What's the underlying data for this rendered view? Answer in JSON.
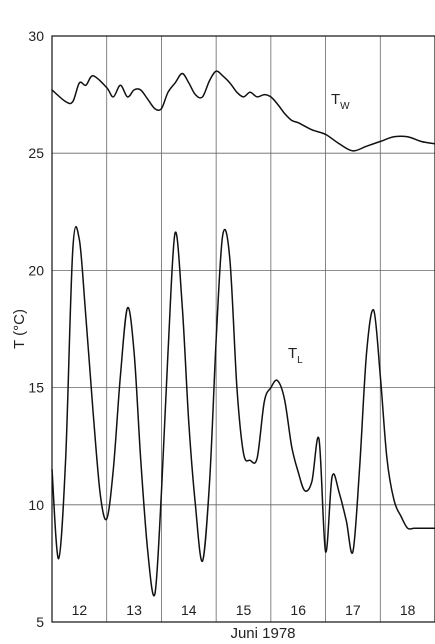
{
  "chart_data": {
    "type": "line",
    "ylabel": "T (°C)",
    "xlabel": "Juni 1978",
    "ylim": [
      5,
      30
    ],
    "yticks": [
      5,
      10,
      15,
      20,
      25,
      30
    ],
    "xlim": [
      11.5,
      18.5
    ],
    "xticks": [
      12,
      13,
      14,
      15,
      16,
      17,
      18
    ],
    "xtick_labels": [
      "12",
      "13",
      "14",
      "15",
      "16",
      "17",
      "18"
    ],
    "grid": true,
    "series": [
      {
        "name": "T",
        "name_sub": "W",
        "x": [
          11.5,
          11.75,
          11.88,
          12.0,
          12.12,
          12.25,
          12.5,
          12.62,
          12.75,
          12.88,
          13.0,
          13.12,
          13.25,
          13.38,
          13.5,
          13.62,
          13.75,
          13.88,
          14.0,
          14.12,
          14.25,
          14.38,
          14.5,
          14.62,
          14.75,
          14.88,
          15.0,
          15.12,
          15.25,
          15.38,
          15.5,
          15.62,
          15.75,
          15.88,
          16.0,
          16.25,
          16.5,
          16.75,
          17.0,
          17.25,
          17.5,
          17.75,
          18.0,
          18.25,
          18.5
        ],
        "y": [
          27.7,
          27.2,
          27.2,
          28.0,
          27.9,
          28.3,
          27.8,
          27.4,
          27.9,
          27.4,
          27.7,
          27.7,
          27.3,
          26.9,
          26.9,
          27.6,
          28.0,
          28.4,
          28.0,
          27.5,
          27.4,
          28.1,
          28.5,
          28.3,
          28.0,
          27.6,
          27.4,
          27.6,
          27.4,
          27.5,
          27.4,
          27.1,
          26.7,
          26.4,
          26.3,
          26.0,
          25.8,
          25.4,
          25.1,
          25.3,
          25.5,
          25.7,
          25.7,
          25.5,
          25.4
        ]
      },
      {
        "name": "T",
        "name_sub": "L",
        "x": [
          11.5,
          11.62,
          11.75,
          11.88,
          12.0,
          12.12,
          12.25,
          12.38,
          12.5,
          12.62,
          12.75,
          12.88,
          13.0,
          13.12,
          13.25,
          13.38,
          13.5,
          13.62,
          13.75,
          13.88,
          14.0,
          14.12,
          14.25,
          14.38,
          14.5,
          14.62,
          14.75,
          14.88,
          15.0,
          15.12,
          15.25,
          15.38,
          15.5,
          15.62,
          15.75,
          15.88,
          16.0,
          16.12,
          16.25,
          16.38,
          16.5,
          16.62,
          16.75,
          16.88,
          17.0,
          17.12,
          17.25,
          17.38,
          17.5,
          17.62,
          17.75,
          17.88,
          18.0,
          18.12,
          18.25,
          18.38,
          18.5
        ],
        "y": [
          11.5,
          7.7,
          12.0,
          20.9,
          21.3,
          18.0,
          14.0,
          10.5,
          9.4,
          11.5,
          15.5,
          18.4,
          16.5,
          12.0,
          8.0,
          6.2,
          10.5,
          16.5,
          21.6,
          18.5,
          13.5,
          10.0,
          7.6,
          11.0,
          17.0,
          21.5,
          20.5,
          15.0,
          12.2,
          11.9,
          12.0,
          14.4,
          15.0,
          15.3,
          14.5,
          12.5,
          11.4,
          10.6,
          11.0,
          12.8,
          8.0,
          11.2,
          10.5,
          9.3,
          8.0,
          11.5,
          16.5,
          18.3,
          15.5,
          12.0,
          10.2,
          9.5,
          9.0,
          9.0,
          9.0,
          9.0,
          9.0
        ]
      }
    ]
  }
}
